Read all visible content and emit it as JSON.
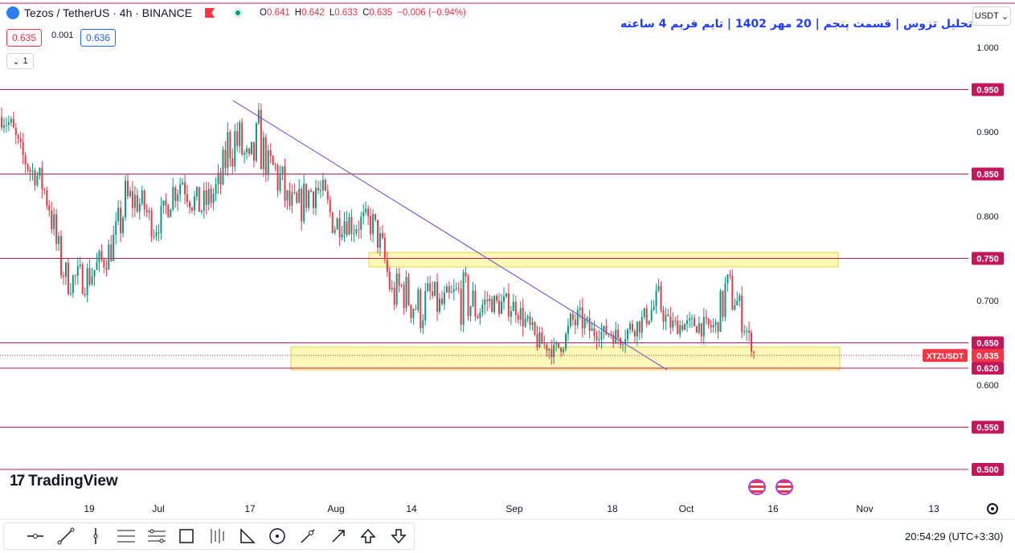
{
  "header": {
    "title": "Tezos / TetherUS · 4h · BINANCE",
    "ohlc": {
      "o_label": "O",
      "o": "0.641",
      "h_label": "H",
      "h": "0.642",
      "l_label": "L",
      "l": "0.633",
      "c_label": "C",
      "c": "0.635",
      "change": "−0.006 (−0.94%)"
    },
    "bid": "0.635",
    "spread": "0.001",
    "ask": "0.636",
    "indicators_count": "1"
  },
  "annotation": "تحلیل تزوس | قسمت پنجم | 20 مهر 1402 | تایم فریم 4 ساعته",
  "currency_button": "USDT",
  "branding": "TradingView",
  "clock": "20:54:29 (UTC+3:30)",
  "colors": {
    "up": "#089981",
    "down": "#f23645",
    "level_line": "#c2185b",
    "zone_fill": "#fff59d",
    "trendline": "#5b4fcf",
    "price_tag": "#f23645"
  },
  "chart_data": {
    "type": "candlestick",
    "symbol": "XTZUSDT",
    "y_axis": {
      "range": [
        0.48,
        1.03
      ],
      "ticks": [
        {
          "value": 1.0,
          "label": "1.000"
        },
        {
          "value": 0.9,
          "label": "0.900"
        },
        {
          "value": 0.8,
          "label": "0.800"
        },
        {
          "value": 0.7,
          "label": "0.700"
        },
        {
          "value": 0.6,
          "label": "0.600"
        }
      ]
    },
    "x_axis": {
      "ticks": [
        "19",
        "Jul",
        "17",
        "Aug",
        "14",
        "Sep",
        "18",
        "Oct",
        "16",
        "Nov",
        "13"
      ]
    },
    "levels": [
      {
        "value": 0.95,
        "label": "0.950"
      },
      {
        "value": 0.85,
        "label": "0.850"
      },
      {
        "value": 0.75,
        "label": "0.750"
      },
      {
        "value": 0.65,
        "label": "0.650"
      },
      {
        "value": 0.62,
        "label": "0.620"
      },
      {
        "value": 0.55,
        "label": "0.550"
      },
      {
        "value": 0.5,
        "label": "0.500"
      }
    ],
    "last_price": {
      "value": 0.635,
      "label": "0.635",
      "symbol_tag": "XTZUSDT"
    },
    "zones": [
      {
        "from": 0.74,
        "to": 0.757
      },
      {
        "from": 0.618,
        "to": 0.645
      }
    ],
    "trendline": {
      "from": 0.937,
      "to": 0.618
    },
    "price_path": [
      [
        0.905,
        0.93
      ],
      [
        0.895,
        0.92
      ],
      [
        0.86,
        0.89
      ],
      [
        0.84,
        0.87
      ],
      [
        0.83,
        0.86
      ],
      [
        0.79,
        0.84
      ],
      [
        0.72,
        0.78
      ],
      [
        0.705,
        0.74
      ],
      [
        0.71,
        0.745
      ],
      [
        0.705,
        0.75
      ],
      [
        0.72,
        0.76
      ],
      [
        0.735,
        0.77
      ],
      [
        0.75,
        0.8
      ],
      [
        0.78,
        0.85
      ],
      [
        0.8,
        0.84
      ],
      [
        0.79,
        0.83
      ],
      [
        0.77,
        0.8
      ],
      [
        0.785,
        0.82
      ],
      [
        0.81,
        0.85
      ],
      [
        0.82,
        0.87
      ],
      [
        0.8,
        0.84
      ],
      [
        0.79,
        0.83
      ],
      [
        0.8,
        0.845
      ],
      [
        0.82,
        0.86
      ],
      [
        0.85,
        0.94
      ],
      [
        0.85,
        0.92
      ],
      [
        0.83,
        0.88
      ],
      [
        0.85,
        0.93
      ],
      [
        0.84,
        0.88
      ],
      [
        0.81,
        0.89
      ],
      [
        0.79,
        0.84
      ],
      [
        0.78,
        0.83
      ],
      [
        0.8,
        0.85
      ],
      [
        0.81,
        0.86
      ],
      [
        0.79,
        0.84
      ],
      [
        0.77,
        0.81
      ],
      [
        0.78,
        0.815
      ],
      [
        0.77,
        0.81
      ],
      [
        0.78,
        0.81
      ],
      [
        0.77,
        0.81
      ],
      [
        0.74,
        0.78
      ],
      [
        0.68,
        0.73
      ],
      [
        0.69,
        0.74
      ],
      [
        0.67,
        0.73
      ],
      [
        0.66,
        0.72
      ],
      [
        0.68,
        0.73
      ],
      [
        0.67,
        0.715
      ],
      [
        0.68,
        0.72
      ],
      [
        0.67,
        0.74
      ],
      [
        0.67,
        0.73
      ],
      [
        0.66,
        0.72
      ],
      [
        0.69,
        0.71
      ],
      [
        0.68,
        0.71
      ],
      [
        0.68,
        0.71
      ],
      [
        0.68,
        0.705
      ],
      [
        0.66,
        0.69
      ],
      [
        0.64,
        0.67
      ],
      [
        0.64,
        0.655
      ],
      [
        0.63,
        0.65
      ],
      [
        0.64,
        0.66
      ],
      [
        0.65,
        0.7
      ],
      [
        0.66,
        0.69
      ],
      [
        0.65,
        0.675
      ],
      [
        0.655,
        0.67
      ],
      [
        0.65,
        0.675
      ],
      [
        0.645,
        0.665
      ],
      [
        0.655,
        0.68
      ],
      [
        0.66,
        0.685
      ],
      [
        0.67,
        0.7
      ],
      [
        0.68,
        0.72
      ],
      [
        0.66,
        0.685
      ],
      [
        0.66,
        0.68
      ],
      [
        0.665,
        0.68
      ],
      [
        0.66,
        0.685
      ],
      [
        0.655,
        0.68
      ],
      [
        0.66,
        0.68
      ],
      [
        0.67,
        0.745
      ],
      [
        0.68,
        0.73
      ],
      [
        0.655,
        0.69
      ],
      [
        0.633,
        0.642
      ]
    ]
  }
}
